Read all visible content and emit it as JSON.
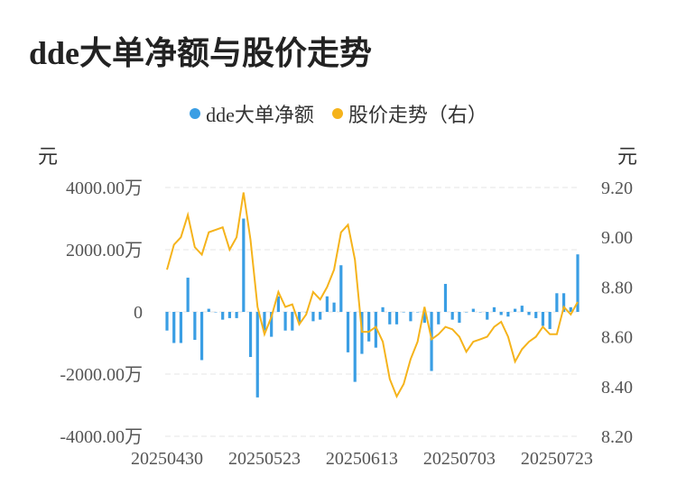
{
  "title": "dde大单净额与股价走势",
  "legend": {
    "series1": "dde大单净额",
    "series2": "股价走势（右）"
  },
  "colors": {
    "bar": "#3a9ee4",
    "line": "#f5b31b",
    "grid": "#e6e6e6"
  },
  "chart_data": {
    "type": "bar+line",
    "title": "dde大单净额与股价走势",
    "left_axis": {
      "unit": "元",
      "ticks": [
        "4000.00万",
        "2000.00万",
        "0",
        "-2000.00万",
        "-4000.00万"
      ],
      "tick_values": [
        4000,
        2000,
        0,
        -2000,
        -4000
      ],
      "range": [
        -4000,
        4000
      ]
    },
    "right_axis": {
      "unit": "元",
      "ticks": [
        "9.20",
        "9.00",
        "8.80",
        "8.60",
        "8.40",
        "8.20"
      ],
      "tick_values": [
        9.2,
        9.0,
        8.8,
        8.6,
        8.4,
        8.2
      ],
      "range": [
        8.2,
        9.2
      ]
    },
    "x_ticks": [
      {
        "label": "20250430",
        "index": 0
      },
      {
        "label": "20250523",
        "index": 14
      },
      {
        "label": "20250613",
        "index": 28
      },
      {
        "label": "20250703",
        "index": 42
      },
      {
        "label": "20250723",
        "index": 56
      }
    ],
    "series": [
      {
        "name": "dde大单净额",
        "type": "bar",
        "axis": "left",
        "values": [
          -600,
          -1000,
          -1000,
          1100,
          -900,
          -1550,
          100,
          0,
          -250,
          -200,
          -200,
          3000,
          -1450,
          -2750,
          -600,
          -800,
          500,
          -600,
          -600,
          -350,
          0,
          -300,
          -250,
          500,
          300,
          1500,
          -1300,
          -2250,
          -1350,
          -950,
          -1150,
          150,
          -400,
          -400,
          0,
          -300,
          0,
          -350,
          -1900,
          -400,
          900,
          -250,
          -350,
          0,
          100,
          0,
          -250,
          150,
          -100,
          -150,
          100,
          200,
          -100,
          -200,
          -450,
          -550,
          600,
          600,
          150,
          1850
        ],
        "unit": "万元"
      },
      {
        "name": "股价走势（右）",
        "type": "line",
        "axis": "right",
        "values": [
          8.87,
          8.97,
          9.0,
          9.09,
          8.96,
          8.93,
          9.02,
          9.03,
          9.04,
          8.95,
          9.0,
          9.18,
          8.99,
          8.72,
          8.61,
          8.68,
          8.78,
          8.72,
          8.73,
          8.65,
          8.69,
          8.78,
          8.75,
          8.8,
          8.87,
          9.02,
          9.05,
          8.91,
          8.62,
          8.62,
          8.64,
          8.58,
          8.43,
          8.36,
          8.41,
          8.51,
          8.58,
          8.72,
          8.59,
          8.61,
          8.64,
          8.63,
          8.6,
          8.54,
          8.58,
          8.59,
          8.6,
          8.64,
          8.66,
          8.6,
          8.5,
          8.55,
          8.58,
          8.6,
          8.64,
          8.61,
          8.61,
          8.72,
          8.69,
          8.74
        ]
      }
    ]
  }
}
